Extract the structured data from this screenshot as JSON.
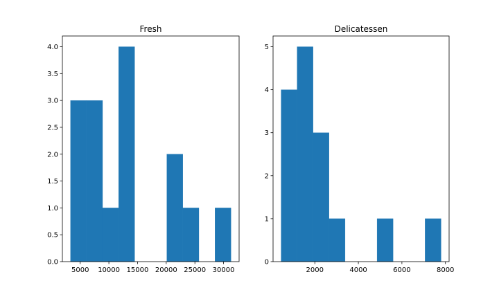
{
  "chart_data": [
    {
      "type": "bar",
      "subtype": "histogram",
      "title": "Fresh",
      "xlabel": "",
      "ylabel": "",
      "bins": [
        {
          "x0": 3300,
          "x1": 6100,
          "count": 3
        },
        {
          "x0": 6100,
          "x1": 8900,
          "count": 3
        },
        {
          "x0": 8900,
          "x1": 11700,
          "count": 1
        },
        {
          "x0": 11700,
          "x1": 14500,
          "count": 4
        },
        {
          "x0": 14500,
          "x1": 17300,
          "count": 0
        },
        {
          "x0": 17300,
          "x1": 20100,
          "count": 0
        },
        {
          "x0": 20100,
          "x1": 22900,
          "count": 2
        },
        {
          "x0": 22900,
          "x1": 25700,
          "count": 1
        },
        {
          "x0": 25700,
          "x1": 28500,
          "count": 0
        },
        {
          "x0": 28500,
          "x1": 31300,
          "count": 1
        }
      ],
      "xlim": [
        1890,
        32710
      ],
      "ylim": [
        0,
        4.2
      ],
      "xticks": [
        5000,
        10000,
        15000,
        20000,
        25000,
        30000
      ],
      "xtick_labels": [
        "5000",
        "10000",
        "15000",
        "20000",
        "25000",
        "30000"
      ],
      "yticks": [
        0,
        0.5,
        1,
        1.5,
        2,
        2.5,
        3,
        3.5,
        4
      ],
      "ytick_labels": [
        "0.0",
        "0.5",
        "1.0",
        "1.5",
        "2.0",
        "2.5",
        "3.0",
        "3.5",
        "4.0"
      ],
      "color": "#1f77b4",
      "grid": false
    },
    {
      "type": "bar",
      "subtype": "histogram",
      "title": "Delicatessen",
      "xlabel": "",
      "ylabel": "",
      "bins": [
        {
          "x0": 450,
          "x1": 1185,
          "count": 4
        },
        {
          "x0": 1185,
          "x1": 1920,
          "count": 5
        },
        {
          "x0": 1920,
          "x1": 2655,
          "count": 3
        },
        {
          "x0": 2655,
          "x1": 3390,
          "count": 1
        },
        {
          "x0": 3390,
          "x1": 4125,
          "count": 0
        },
        {
          "x0": 4125,
          "x1": 4860,
          "count": 0
        },
        {
          "x0": 4860,
          "x1": 5595,
          "count": 1
        },
        {
          "x0": 5595,
          "x1": 6330,
          "count": 0
        },
        {
          "x0": 6330,
          "x1": 7065,
          "count": 0
        },
        {
          "x0": 7065,
          "x1": 7800,
          "count": 1
        }
      ],
      "xlim": [
        81.25,
        8168.75
      ],
      "ylim": [
        0,
        5.25
      ],
      "xticks": [
        2000,
        4000,
        6000,
        8000
      ],
      "xtick_labels": [
        "2000",
        "4000",
        "6000",
        "8000"
      ],
      "yticks": [
        0,
        1,
        2,
        3,
        4,
        5
      ],
      "ytick_labels": [
        "0",
        "1",
        "2",
        "3",
        "4",
        "5"
      ],
      "color": "#1f77b4",
      "grid": false
    }
  ]
}
